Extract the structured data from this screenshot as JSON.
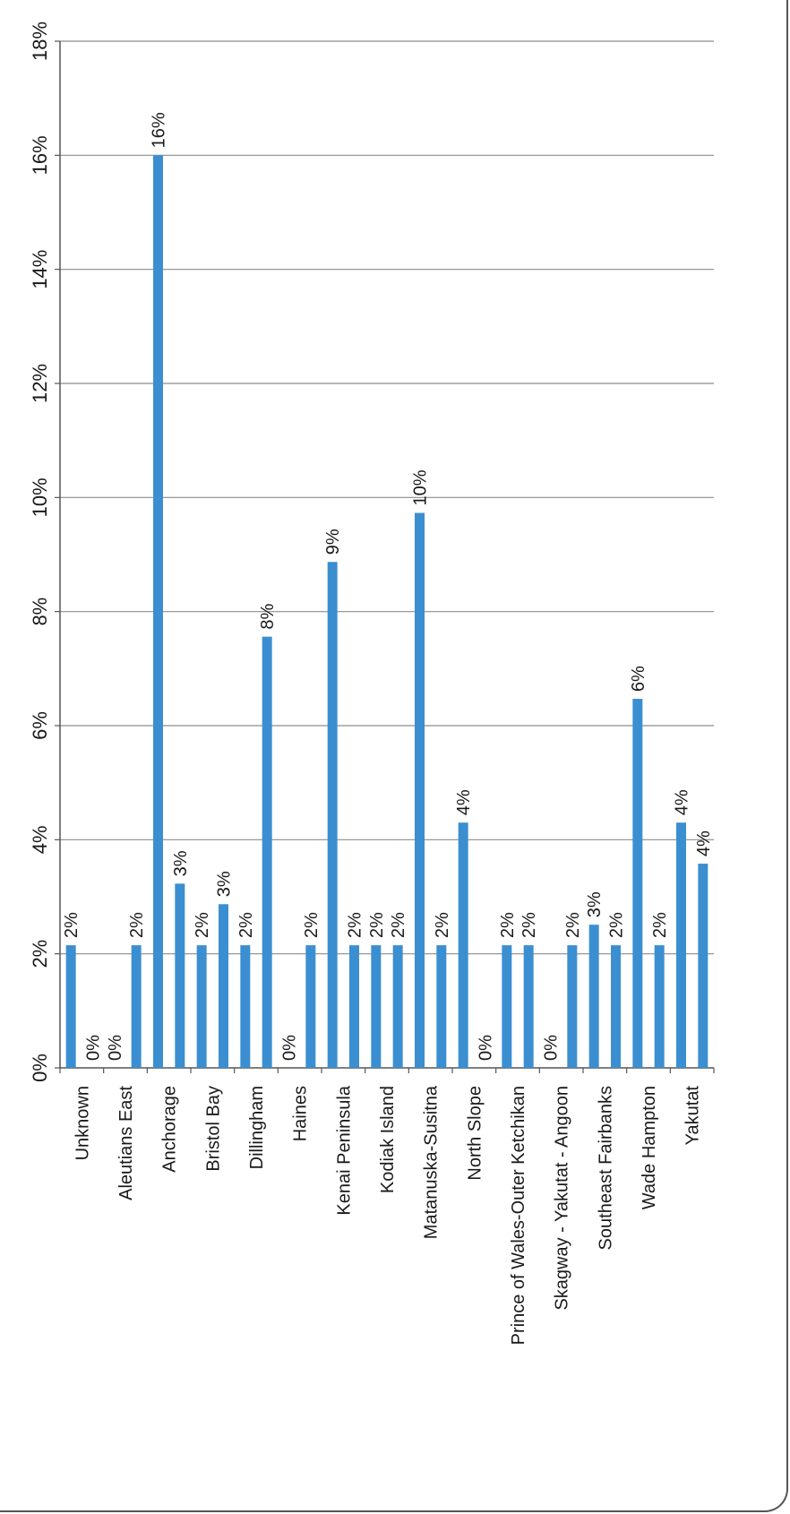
{
  "chart_data": {
    "type": "bar",
    "orientation": "vertical bars, page rotated 90 degrees",
    "title": "",
    "xlabel": "",
    "ylabel": "",
    "ylim": [
      0,
      18
    ],
    "y_ticks": [
      0,
      2,
      4,
      6,
      8,
      10,
      12,
      14,
      16,
      18
    ],
    "y_tick_labels": [
      "0%",
      "2%",
      "4%",
      "6%",
      "8%",
      "10%",
      "12%",
      "14%",
      "16%",
      "18%"
    ],
    "grid": true,
    "legend": "none",
    "bar_color": "#3b8fd0",
    "categories": [
      "Unknown",
      "",
      "Aleutians East",
      "",
      "Anchorage",
      "",
      "Bristol Bay",
      "",
      "Dillingham",
      "",
      "Haines",
      "",
      "Kenai Peninsula",
      "",
      "Kodiak Island",
      "",
      "Matanuska-Susitna",
      "",
      "North Slope",
      "",
      "Prince of Wales-Outer Ketchikan",
      "",
      "Skagway - Yakutat - Angoon",
      "",
      "Southeast Fairbanks",
      "",
      "Wade Hampton",
      "",
      "Yakutat",
      ""
    ],
    "values": [
      2.15,
      0,
      0,
      2.15,
      16.0,
      3.23,
      2.15,
      2.87,
      2.15,
      7.56,
      0,
      2.15,
      8.87,
      2.15,
      2.15,
      2.15,
      9.73,
      2.15,
      4.3,
      0,
      2.15,
      2.15,
      0,
      2.15,
      2.51,
      2.15,
      6.47,
      2.15,
      4.3,
      3.58
    ],
    "data_labels": [
      "2%",
      "0%",
      "0%",
      "2%",
      "16%",
      "3%",
      "2%",
      "3%",
      "2%",
      "8%",
      "0%",
      "2%",
      "9%",
      "2%",
      "2%",
      "2%",
      "10%",
      "2%",
      "4%",
      "0%",
      "2%",
      "2%",
      "0%",
      "2%",
      "3%",
      "2%",
      "6%",
      "2%",
      "4%",
      "4%"
    ]
  }
}
